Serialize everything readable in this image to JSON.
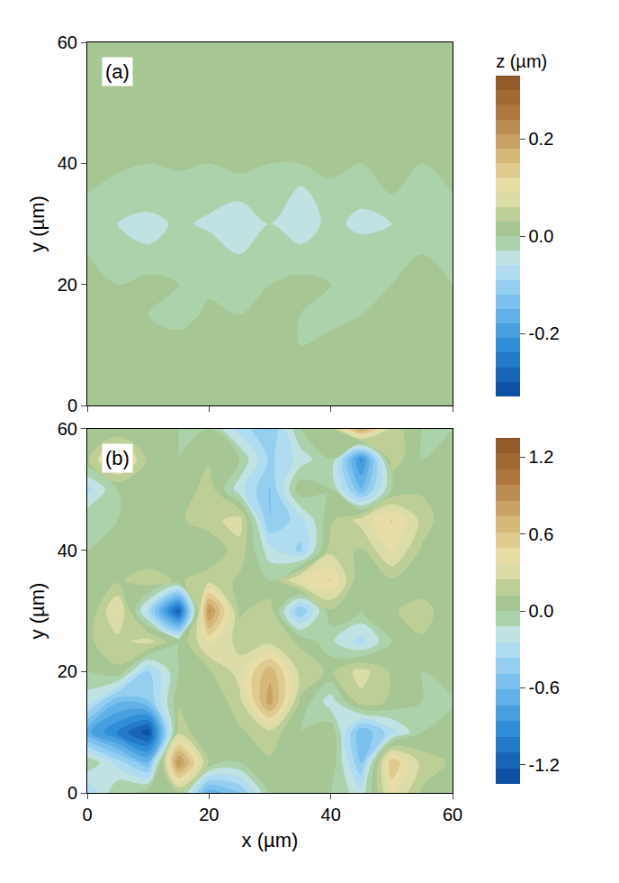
{
  "chart_data": [
    {
      "type": "contour",
      "annotations": [
        "(a)"
      ],
      "ylabel": "y (µm)",
      "colorbar_title": "z (µm)",
      "xlim": [
        0,
        60
      ],
      "ylim": [
        0,
        60
      ],
      "xticks": [
        0,
        20,
        40,
        60
      ],
      "yticks": [
        0,
        20,
        40,
        60
      ],
      "tick_labels": "y",
      "x": [
        0,
        5,
        10,
        15,
        20,
        25,
        30,
        35,
        40,
        45,
        50,
        55,
        60
      ],
      "y": [
        0,
        5,
        10,
        15,
        20,
        25,
        30,
        35,
        40,
        45,
        50,
        55,
        60
      ],
      "z": [
        [
          0.02,
          0.01,
          0.02,
          0.01,
          0.02,
          0.01,
          0.02,
          0.01,
          0.02,
          0.01,
          0.02,
          0.01,
          0.02
        ],
        [
          0.01,
          0.02,
          0.01,
          0.0,
          0.03,
          0.01,
          0.0,
          0.01,
          0.02,
          0.0,
          0.01,
          0.02,
          0.01
        ],
        [
          0.01,
          0.0,
          0.01,
          0.02,
          0.0,
          0.01,
          0.01,
          0.0,
          0.01,
          0.02,
          0.0,
          0.01,
          0.01
        ],
        [
          0.0,
          0.01,
          0.0,
          -0.02,
          0.01,
          0.0,
          0.01,
          0.0,
          -0.01,
          0.0,
          0.01,
          0.0,
          0.01
        ],
        [
          0.01,
          0.0,
          0.01,
          0.0,
          -0.01,
          0.0,
          0.0,
          0.01,
          0.0,
          0.0,
          0.0,
          0.01,
          0.0
        ],
        [
          0.0,
          0.0,
          -0.02,
          0.0,
          0.0,
          -0.03,
          0.0,
          -0.02,
          0.0,
          -0.01,
          0.0,
          0.0,
          0.0
        ],
        [
          0.0,
          -0.03,
          -0.05,
          -0.02,
          -0.04,
          -0.06,
          -0.03,
          -0.05,
          -0.02,
          -0.04,
          -0.03,
          -0.01,
          0.0
        ],
        [
          0.0,
          -0.02,
          0.0,
          -0.03,
          -0.01,
          -0.02,
          0.0,
          -0.04,
          -0.01,
          -0.02,
          0.0,
          -0.01,
          0.0
        ],
        [
          0.02,
          0.01,
          0.0,
          0.01,
          0.0,
          0.01,
          0.0,
          0.0,
          0.01,
          0.0,
          0.01,
          0.0,
          0.01
        ],
        [
          0.01,
          0.02,
          0.01,
          0.0,
          0.01,
          0.0,
          0.01,
          0.02,
          0.0,
          0.01,
          0.0,
          0.01,
          0.02
        ],
        [
          0.02,
          0.01,
          0.0,
          0.01,
          0.02,
          0.01,
          0.0,
          0.01,
          0.02,
          0.01,
          0.0,
          0.01,
          0.01
        ],
        [
          0.01,
          0.0,
          0.01,
          0.02,
          0.01,
          0.0,
          0.01,
          0.0,
          0.01,
          0.02,
          0.01,
          0.0,
          0.01
        ],
        [
          0.02,
          0.01,
          0.02,
          0.01,
          0.0,
          0.01,
          0.02,
          0.01,
          0.0,
          0.01,
          0.02,
          0.01,
          0.03
        ]
      ],
      "zlim": [
        -0.33,
        0.33
      ],
      "zticks": [
        -0.2,
        {
          "value": 0,
          "label": "0.0"
        },
        0.2
      ]
    },
    {
      "type": "contour",
      "annotations": [
        "(b)"
      ],
      "xlabel": "x (µm)",
      "ylabel": "y (µm)",
      "xlim": [
        0,
        60
      ],
      "ylim": [
        0,
        60
      ],
      "xticks": [
        0,
        20,
        40,
        60
      ],
      "yticks": [
        0,
        20,
        40,
        60
      ],
      "x": [
        0,
        5,
        10,
        15,
        20,
        25,
        30,
        35,
        40,
        45,
        50,
        55,
        60
      ],
      "y": [
        0,
        5,
        10,
        15,
        20,
        25,
        30,
        35,
        40,
        45,
        50,
        55,
        60
      ],
      "z": [
        [
          -0.4,
          0.0,
          0.1,
          0.1,
          -0.7,
          -0.5,
          0.0,
          0.1,
          0.0,
          -0.2,
          0.4,
          0.1,
          0.0
        ],
        [
          0.0,
          -0.3,
          -0.6,
          0.9,
          0.1,
          0.0,
          0.1,
          0.0,
          0.1,
          -0.5,
          0.6,
          0.2,
          0.1
        ],
        [
          -0.7,
          -1.0,
          -1.3,
          0.2,
          0.0,
          0.1,
          0.2,
          0.0,
          0.1,
          -0.6,
          -0.3,
          0.0,
          0.1
        ],
        [
          -0.2,
          -0.6,
          -0.5,
          0.1,
          0.0,
          0.2,
          0.8,
          0.1,
          -0.2,
          0.2,
          0.1,
          0.0,
          0.0
        ],
        [
          0.0,
          0.1,
          -0.4,
          0.0,
          0.1,
          0.3,
          0.7,
          0.2,
          0.1,
          0.3,
          0.1,
          0.0,
          0.1
        ],
        [
          0.1,
          0.2,
          0.3,
          0.0,
          0.4,
          0.2,
          0.2,
          0.1,
          -0.1,
          -0.3,
          0.0,
          0.1,
          0.0
        ],
        [
          0.0,
          0.4,
          -0.3,
          -1.2,
          0.9,
          0.1,
          0.2,
          -0.5,
          0.1,
          0.0,
          0.1,
          0.2,
          0.0
        ],
        [
          0.1,
          0.1,
          0.2,
          0.1,
          0.2,
          0.1,
          0.0,
          0.4,
          0.5,
          0.0,
          0.1,
          0.0,
          0.1
        ],
        [
          0.0,
          0.1,
          0.0,
          0.1,
          0.0,
          0.2,
          -0.2,
          -0.4,
          0.2,
          0.1,
          0.4,
          0.1,
          0.0
        ],
        [
          0.0,
          0.0,
          0.1,
          0.1,
          0.2,
          0.3,
          -0.5,
          -0.3,
          0.1,
          0.3,
          0.5,
          0.2,
          0.0
        ],
        [
          -0.3,
          0.0,
          0.1,
          0.0,
          0.2,
          -0.2,
          -0.5,
          0.1,
          0.0,
          -0.6,
          0.0,
          0.1,
          0.0
        ],
        [
          0.1,
          0.5,
          0.1,
          0.0,
          0.1,
          0.0,
          -0.4,
          -0.2,
          0.0,
          -0.9,
          0.2,
          0.0,
          0.1
        ],
        [
          0.0,
          0.0,
          0.1,
          0.0,
          0.0,
          -0.3,
          -0.5,
          0.0,
          0.1,
          0.8,
          0.2,
          0.0,
          0.0
        ]
      ],
      "zlim": [
        -1.35,
        1.35
      ],
      "zticks": [
        -1.2,
        -0.6,
        {
          "value": 0,
          "label": "0.0"
        },
        0.6,
        1.2
      ]
    }
  ]
}
